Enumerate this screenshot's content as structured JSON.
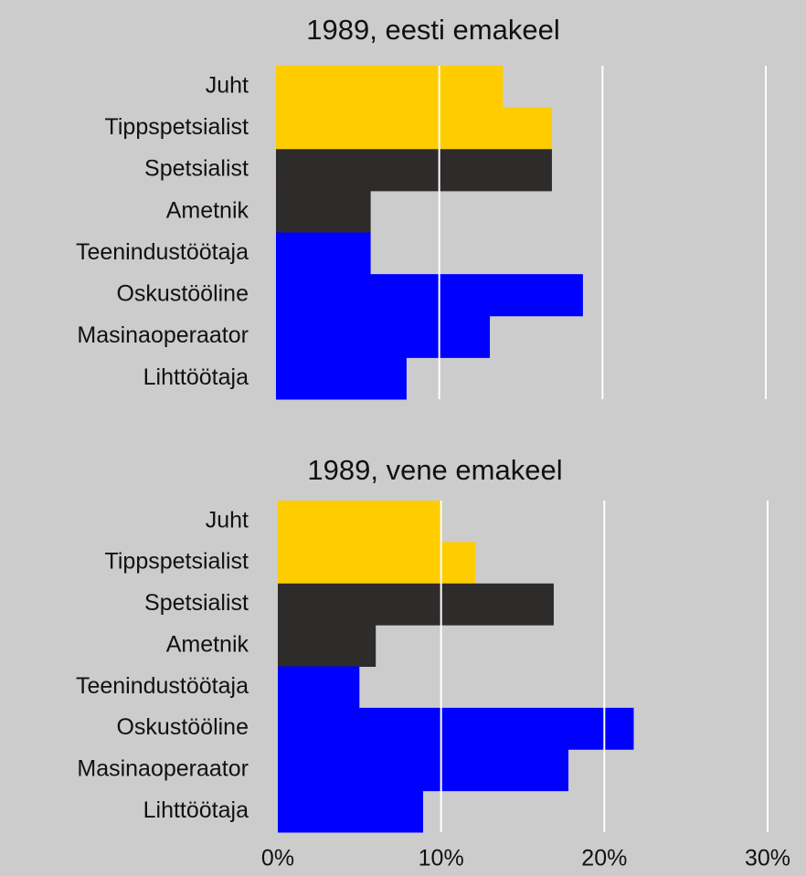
{
  "chart_data": [
    {
      "type": "barh",
      "title": "1989, eesti emakeel",
      "categories": [
        "Juht",
        "Tippspetsialist",
        "Spetsialist",
        "Ametnik",
        "Teenindustöötaja",
        "Oskustööline",
        "Masinaoperaator",
        "Lihttöötaja"
      ],
      "values": [
        13.9,
        16.9,
        16.9,
        5.8,
        5.8,
        18.8,
        13.1,
        8.0
      ],
      "colors": [
        "#ffcc00",
        "#ffcc00",
        "#2e2b2b",
        "#2e2b2b",
        "#0000ff",
        "#0000ff",
        "#0000ff",
        "#0000ff"
      ],
      "xlim": [
        0,
        30
      ],
      "xticks": [
        10,
        20,
        30
      ],
      "grid": true
    },
    {
      "type": "barh",
      "title": "1989, vene emakeel",
      "categories": [
        "Juht",
        "Tippspetsialist",
        "Spetsialist",
        "Ametnik",
        "Teenindustöötaja",
        "Oskustööline",
        "Masinaoperaator",
        "Lihttöötaja"
      ],
      "values": [
        10.0,
        12.1,
        16.9,
        6.0,
        5.0,
        21.8,
        17.8,
        8.9
      ],
      "colors": [
        "#ffcc00",
        "#ffcc00",
        "#2e2b2b",
        "#2e2b2b",
        "#0000ff",
        "#0000ff",
        "#0000ff",
        "#0000ff"
      ],
      "xlim": [
        0,
        30
      ],
      "xticks": [
        {
          "value": 0,
          "label": "0%"
        },
        {
          "value": 10,
          "label": "10%"
        },
        {
          "value": 20,
          "label": "20%"
        },
        {
          "value": 30,
          "label": "30%"
        }
      ],
      "grid": true
    }
  ]
}
